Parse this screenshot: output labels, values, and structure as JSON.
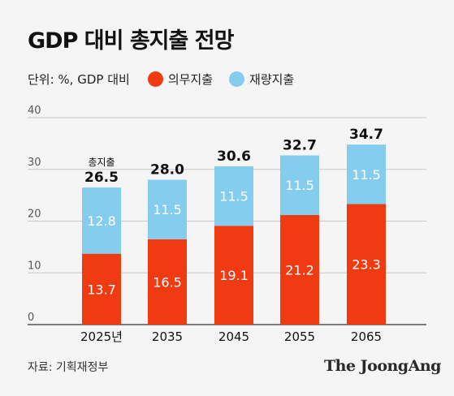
{
  "title": "GDP 대비 총지출 전망",
  "legend": {
    "unit": "단위: %, GDP 대비",
    "mandatory": "의무지출",
    "discretionary": "재량지출"
  },
  "colors": {
    "mandatory": "#f03a12",
    "discretionary": "#84cdee",
    "grid": "#c8c8c8",
    "axis": "#555555"
  },
  "source": "자료: 기획재정부",
  "brand": "The JoongAng",
  "chart_data": {
    "type": "bar",
    "stacked": true,
    "categories": [
      "2025년",
      "2035",
      "2045",
      "2055",
      "2065"
    ],
    "series": [
      {
        "name": "의무지출",
        "values": [
          13.7,
          16.5,
          19.1,
          21.2,
          23.3
        ]
      },
      {
        "name": "재량지출",
        "values": [
          12.8,
          11.5,
          11.5,
          11.5,
          11.5
        ]
      }
    ],
    "totals": [
      26.5,
      28.0,
      30.6,
      32.7,
      34.7
    ],
    "total_labels": [
      "26.5",
      "28.0",
      "30.6",
      "32.7",
      "34.7"
    ],
    "mandatory_labels": [
      "13.7",
      "16.5",
      "19.1",
      "21.2",
      "23.3"
    ],
    "discretionary_labels": [
      "12.8",
      "11.5",
      "11.5",
      "11.5",
      "11.5"
    ],
    "total_annotation": "총지출",
    "yticks": [
      0,
      10,
      20,
      30,
      40
    ],
    "ylim": [
      0,
      40
    ],
    "grid": true,
    "legend_position": "top-left"
  }
}
